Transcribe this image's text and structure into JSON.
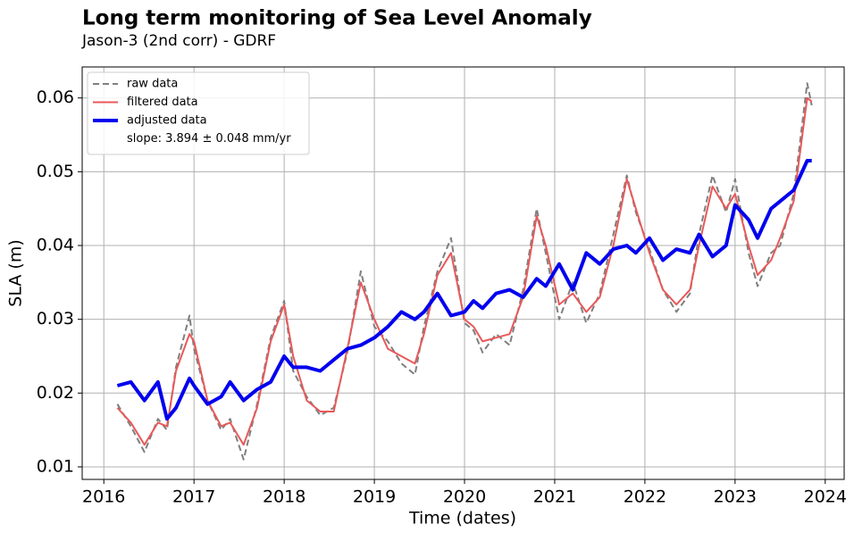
{
  "chart_data": {
    "type": "line",
    "title": "Long term monitoring of Sea Level Anomaly",
    "subtitle": "Jason-3 (2nd corr) - GDRF",
    "x_label": "Time (dates)",
    "y_label": "SLA (m)",
    "annotation": "slope: 3.894 ± 0.048 mm/yr",
    "x": [
      2016.15,
      2016.3,
      2016.45,
      2016.6,
      2016.7,
      2016.8,
      2016.95,
      2017.0,
      2017.15,
      2017.3,
      2017.4,
      2017.55,
      2017.7,
      2017.85,
      2018.0,
      2018.1,
      2018.25,
      2018.4,
      2018.55,
      2018.7,
      2018.85,
      2019.0,
      2019.15,
      2019.3,
      2019.45,
      2019.55,
      2019.7,
      2019.85,
      2020.0,
      2020.1,
      2020.2,
      2020.35,
      2020.5,
      2020.65,
      2020.8,
      2020.9,
      2021.05,
      2021.2,
      2021.35,
      2021.5,
      2021.65,
      2021.8,
      2021.9,
      2022.05,
      2022.2,
      2022.35,
      2022.5,
      2022.6,
      2022.75,
      2022.9,
      2023.0,
      2023.15,
      2023.25,
      2023.4,
      2023.5,
      2023.65,
      2023.8,
      2023.85
    ],
    "series": [
      {
        "name": "raw data",
        "color": "#7f7f7f",
        "dash": true,
        "width": 2,
        "values": [
          0.0185,
          0.0155,
          0.012,
          0.0165,
          0.015,
          0.0235,
          0.0305,
          0.026,
          0.019,
          0.015,
          0.0165,
          0.011,
          0.0185,
          0.0275,
          0.0325,
          0.023,
          0.0195,
          0.017,
          0.018,
          0.0255,
          0.0365,
          0.029,
          0.027,
          0.024,
          0.0225,
          0.029,
          0.0365,
          0.041,
          0.0295,
          0.0285,
          0.0255,
          0.028,
          0.0265,
          0.034,
          0.045,
          0.039,
          0.03,
          0.035,
          0.0295,
          0.0335,
          0.0415,
          0.0495,
          0.0445,
          0.0395,
          0.034,
          0.031,
          0.0335,
          0.0415,
          0.0495,
          0.0445,
          0.049,
          0.039,
          0.0345,
          0.039,
          0.04,
          0.047,
          0.062,
          0.059
        ]
      },
      {
        "name": "filtered data",
        "color": "#e8595a",
        "dash": false,
        "width": 2,
        "values": [
          0.018,
          0.016,
          0.013,
          0.016,
          0.0155,
          0.023,
          0.028,
          0.027,
          0.019,
          0.0155,
          0.016,
          0.013,
          0.018,
          0.027,
          0.032,
          0.025,
          0.019,
          0.0175,
          0.0175,
          0.026,
          0.035,
          0.03,
          0.026,
          0.025,
          0.024,
          0.028,
          0.036,
          0.039,
          0.03,
          0.029,
          0.027,
          0.0275,
          0.028,
          0.033,
          0.044,
          0.04,
          0.032,
          0.0335,
          0.031,
          0.033,
          0.04,
          0.049,
          0.045,
          0.039,
          0.034,
          0.032,
          0.034,
          0.04,
          0.048,
          0.045,
          0.047,
          0.04,
          0.036,
          0.038,
          0.041,
          0.046,
          0.06,
          0.0595
        ]
      },
      {
        "name": "adjusted data",
        "color": "#0000ee",
        "dash": false,
        "width": 4,
        "values": [
          0.021,
          0.0215,
          0.019,
          0.0215,
          0.0165,
          0.018,
          0.022,
          0.021,
          0.0185,
          0.0195,
          0.0215,
          0.019,
          0.0205,
          0.0215,
          0.025,
          0.0235,
          0.0235,
          0.023,
          0.0245,
          0.026,
          0.0265,
          0.0275,
          0.029,
          0.031,
          0.03,
          0.031,
          0.0335,
          0.0305,
          0.031,
          0.0325,
          0.0315,
          0.0335,
          0.034,
          0.033,
          0.0355,
          0.0345,
          0.0375,
          0.034,
          0.039,
          0.0375,
          0.0395,
          0.04,
          0.039,
          0.041,
          0.038,
          0.0395,
          0.039,
          0.0415,
          0.0385,
          0.04,
          0.0455,
          0.0435,
          0.041,
          0.045,
          0.046,
          0.0475,
          0.0515,
          0.0515
        ]
      }
    ],
    "xlim": [
      2015.76,
      2024.21
    ],
    "ylim": [
      0.0083,
      0.0642
    ],
    "xticks": [
      2016,
      2017,
      2018,
      2019,
      2020,
      2021,
      2022,
      2023,
      2024
    ],
    "yticks": [
      0.01,
      0.02,
      0.03,
      0.04,
      0.05,
      0.06
    ],
    "grid": true,
    "legend": "upper left"
  }
}
